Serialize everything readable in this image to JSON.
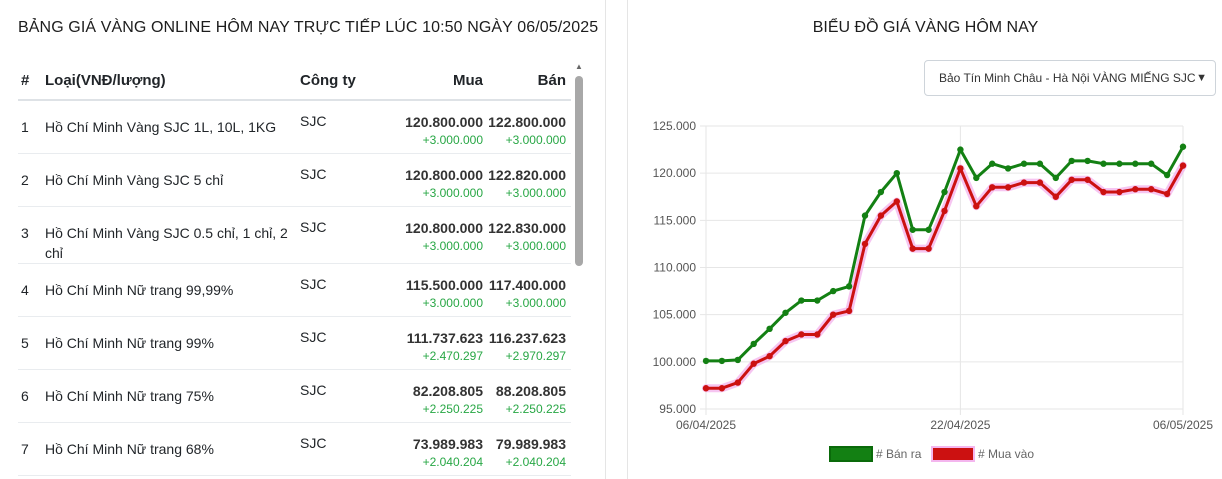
{
  "page": {
    "title": "BẢNG GIÁ VÀNG ONLINE HÔM NAY TRỰC TIẾP LÚC 10:50 NGÀY 06/05/2025"
  },
  "table": {
    "headers": {
      "num": "#",
      "type": "Loại(VNĐ/lượng)",
      "company": "Công ty",
      "buy": "Mua",
      "sell": "Bán"
    },
    "rows": [
      {
        "num": "1",
        "type": "Hồ Chí Minh Vàng SJC 1L, 10L, 1KG",
        "company": "SJC",
        "buy": "120.800.000",
        "buy_change": "+3.000.000",
        "sell": "122.800.000",
        "sell_change": "+3.000.000"
      },
      {
        "num": "2",
        "type": "Hồ Chí Minh Vàng SJC 5 chỉ",
        "company": "SJC",
        "buy": "120.800.000",
        "buy_change": "+3.000.000",
        "sell": "122.820.000",
        "sell_change": "+3.000.000"
      },
      {
        "num": "3",
        "type": "Hồ Chí Minh Vàng SJC 0.5 chỉ, 1 chỉ, 2 chỉ",
        "company": "SJC",
        "buy": "120.800.000",
        "buy_change": "+3.000.000",
        "sell": "122.830.000",
        "sell_change": "+3.000.000"
      },
      {
        "num": "4",
        "type": "Hồ Chí Minh Nữ trang 99,99%",
        "company": "SJC",
        "buy": "115.500.000",
        "buy_change": "+3.000.000",
        "sell": "117.400.000",
        "sell_change": "+3.000.000"
      },
      {
        "num": "5",
        "type": "Hồ Chí Minh Nữ trang 99%",
        "company": "SJC",
        "buy": "111.737.623",
        "buy_change": "+2.470.297",
        "sell": "116.237.623",
        "sell_change": "+2.970.297"
      },
      {
        "num": "6",
        "type": "Hồ Chí Minh Nữ trang 75%",
        "company": "SJC",
        "buy": "82.208.805",
        "buy_change": "+2.250.225",
        "sell": "88.208.805",
        "sell_change": "+2.250.225"
      },
      {
        "num": "7",
        "type": "Hồ Chí Minh Nữ trang 68%",
        "company": "SJC",
        "buy": "73.989.983",
        "buy_change": "+2.040.204",
        "sell": "79.989.983",
        "sell_change": "+2.040.204"
      }
    ]
  },
  "chart_panel": {
    "title": "BIỂU ĐỒ GIÁ VÀNG HÔM NAY",
    "selected_option": "Bảo Tín Minh Châu - Hà Nội VÀNG MIẾNG SJC"
  },
  "icons": {
    "dropdown": "chevron-down-icon",
    "scroll_up": "scroll-up-arrow-icon"
  },
  "chart_data": {
    "type": "line",
    "title": "",
    "x_tick_labels": [
      "06/04/2025",
      "22/04/2025",
      "06/05/2025"
    ],
    "x": [
      "06/04/2025",
      "07/04/2025",
      "08/04/2025",
      "09/04/2025",
      "10/04/2025",
      "11/04/2025",
      "12/04/2025",
      "13/04/2025",
      "14/04/2025",
      "15/04/2025",
      "16/04/2025",
      "17/04/2025",
      "18/04/2025",
      "19/04/2025",
      "20/04/2025",
      "21/04/2025",
      "22/04/2025",
      "23/04/2025",
      "24/04/2025",
      "25/04/2025",
      "26/04/2025",
      "27/04/2025",
      "28/04/2025",
      "29/04/2025",
      "30/04/2025",
      "01/05/2025",
      "02/05/2025",
      "03/05/2025",
      "04/05/2025",
      "05/05/2025",
      "06/05/2025"
    ],
    "y_ticks": [
      "95.000",
      "100.000",
      "105.000",
      "110.000",
      "115.000",
      "120.000",
      "125.000"
    ],
    "ylim": [
      95000,
      125000
    ],
    "grid": true,
    "legend_position": "bottom",
    "series": [
      {
        "name": "# Bán ra",
        "color": "#138013",
        "values": [
          100100,
          100100,
          100200,
          101900,
          103500,
          105200,
          106500,
          106500,
          107500,
          108000,
          115500,
          118000,
          120000,
          114000,
          114000,
          118000,
          122500,
          119500,
          121000,
          120500,
          121000,
          121000,
          119500,
          121300,
          121300,
          121000,
          121000,
          121000,
          121000,
          119800,
          122800
        ]
      },
      {
        "name": "# Mua vào",
        "color": "#cc1111",
        "values": [
          97200,
          97200,
          97800,
          99800,
          100600,
          102200,
          102900,
          102900,
          105000,
          105400,
          112500,
          115500,
          117000,
          112000,
          112000,
          116000,
          120500,
          116500,
          118500,
          118500,
          119000,
          119000,
          117500,
          119300,
          119300,
          118000,
          118000,
          118300,
          118300,
          117800,
          120800
        ]
      }
    ]
  }
}
